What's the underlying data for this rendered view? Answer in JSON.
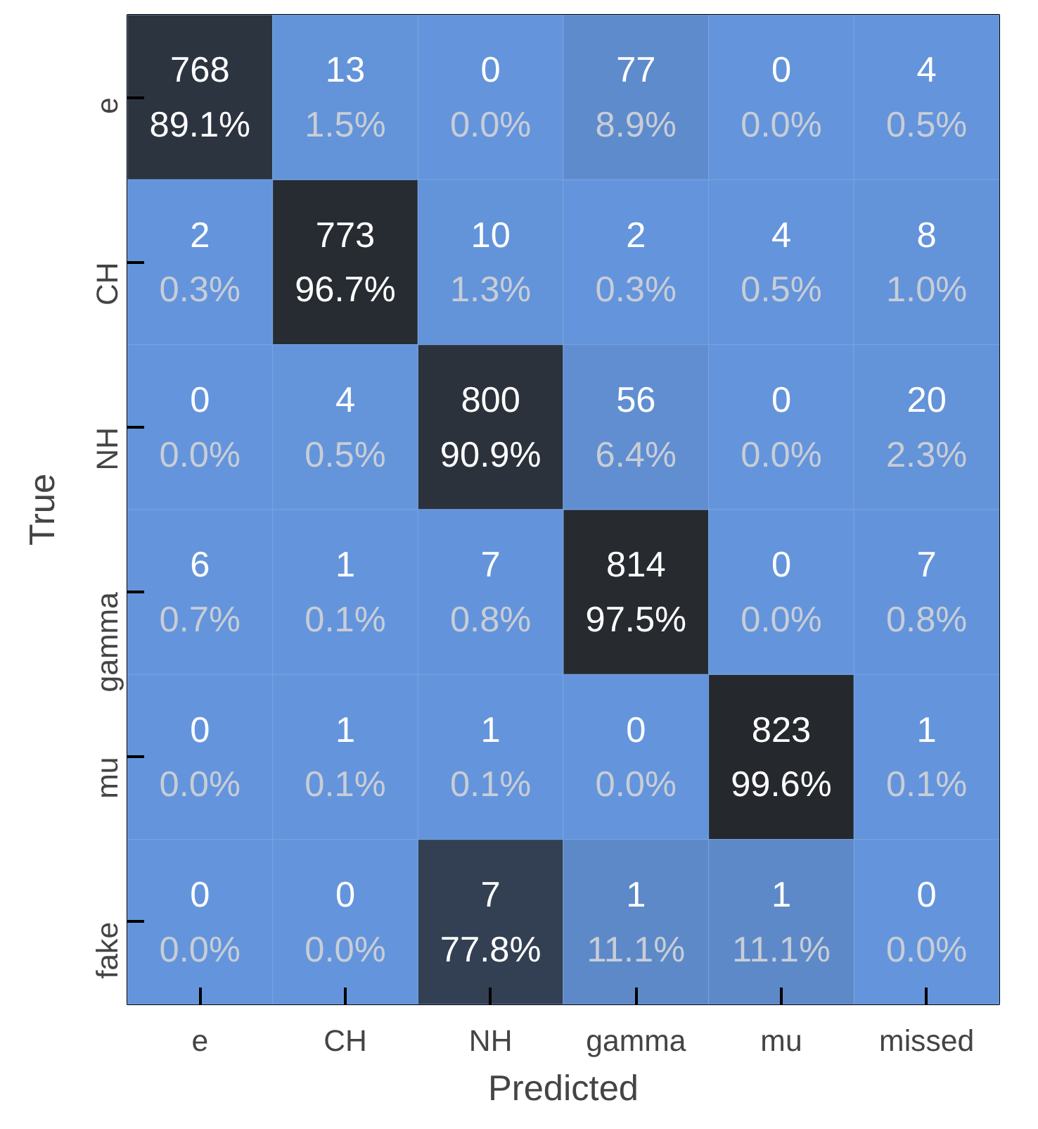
{
  "chart_data": {
    "type": "heatmap",
    "xlabel": "Predicted",
    "ylabel": "True",
    "data_labels": true,
    "categories": [
      "e",
      "CH",
      "NH",
      "gamma",
      "mu",
      "missed"
    ],
    "y_categories": [
      "e",
      "CH",
      "NH",
      "gamma",
      "mu",
      "fake"
    ],
    "cells": [
      [
        768,
        13,
        0,
        77,
        0,
        4
      ],
      [
        2,
        773,
        10,
        2,
        4,
        8
      ],
      [
        0,
        4,
        800,
        56,
        0,
        20
      ],
      [
        6,
        1,
        7,
        814,
        0,
        7
      ],
      [
        0,
        1,
        1,
        0,
        823,
        1
      ],
      [
        0,
        0,
        7,
        1,
        1,
        0
      ]
    ],
    "annotations": [
      "89.1%",
      "1.5%",
      "0.0%",
      "8.9%",
      "0.0%",
      "0.5%",
      "0.3%",
      "96.7%",
      "1.3%",
      "0.3%",
      "0.5%",
      "1.0%",
      "0.0%",
      "0.5%",
      "90.9%",
      "6.4%",
      "0.0%",
      "2.3%",
      "0.7%",
      "0.1%",
      "0.8%",
      "97.5%",
      "0.0%",
      "0.8%",
      "0.0%",
      "0.1%",
      "0.1%",
      "0.0%",
      "99.6%",
      "0.1%",
      "0.0%",
      "0.0%",
      "77.8%",
      "11.1%",
      "11.1%",
      "0.0%"
    ]
  }
}
